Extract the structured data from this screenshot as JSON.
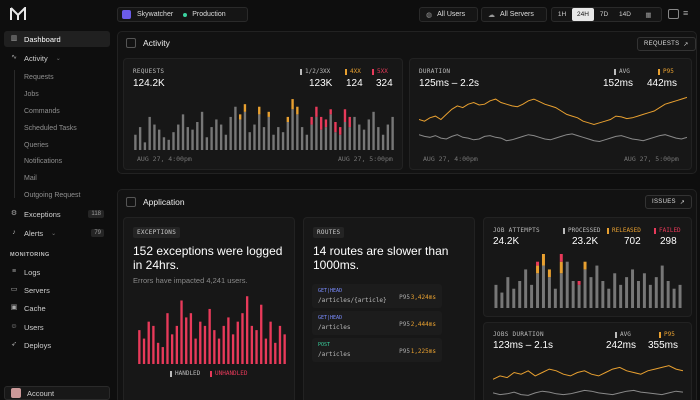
{
  "sidebar": {
    "items": [
      {
        "label": "Dashboard",
        "icon": "chart-bars-icon"
      },
      {
        "label": "Activity",
        "icon": "activity-icon"
      },
      {
        "label": "Exceptions",
        "icon": "bug-icon",
        "count": "118"
      },
      {
        "label": "Alerts",
        "icon": "bell-icon",
        "count": "79"
      }
    ],
    "activity_subitems": [
      "Requests",
      "Jobs",
      "Commands",
      "Scheduled Tasks",
      "Queries",
      "Notifications",
      "Mail",
      "Outgoing Request"
    ],
    "monitoring_label": "MONITORING",
    "monitoring_items": [
      "Logs",
      "Servers",
      "Cache",
      "Users",
      "Deploys"
    ],
    "account_label": "Account"
  },
  "topbar": {
    "app_name": "Skywatcher",
    "environment": "Production",
    "users_filter": "All Users",
    "servers_filter": "All Servers",
    "ranges": [
      "1H",
      "24H",
      "7D",
      "14D"
    ],
    "selected_range": "24H"
  },
  "activity": {
    "title": "Activity",
    "button": "REQUESTS",
    "requests": {
      "label": "REQUESTS",
      "total": "124.2K",
      "legend": [
        {
          "label": "1/2/3XX",
          "value": "123K",
          "color": "#8a8a8a"
        },
        {
          "label": "4XX",
          "value": "124",
          "color": "#e8a030"
        },
        {
          "label": "5XX",
          "value": "324",
          "color": "#e83a5a"
        }
      ],
      "x_start": "AUG 27, 4:00pm",
      "x_end": "AUG 27, 5:00pm"
    },
    "duration": {
      "label": "DURATION",
      "range": "125ms – 2.2s",
      "legend": [
        {
          "label": "AVG",
          "value": "152ms",
          "color": "#8a8a8a"
        },
        {
          "label": "P95",
          "value": "442ms",
          "color": "#e8a030"
        }
      ],
      "x_start": "AUG 27, 4:00pm",
      "x_end": "AUG 27, 5:00pm"
    }
  },
  "application": {
    "title": "Application",
    "button": "ISSUES",
    "exceptions": {
      "tag": "EXCEPTIONS",
      "headline": "152 exceptions were logged in 24hrs.",
      "sub": "Errors have impacted 4,241 users.",
      "legend_handled": "HANDLED",
      "legend_unhandled": "UNHANDLED"
    },
    "routes": {
      "tag": "ROUTES",
      "headline": "14 routes are slower than 1000ms.",
      "items": [
        {
          "method": "GET|HEAD",
          "path": "/articles/{article}",
          "p95_label": "P95",
          "p95": "3,424ms"
        },
        {
          "method": "GET|HEAD",
          "path": "/articles",
          "p95_label": "P95",
          "p95": "2,444ms"
        },
        {
          "method": "POST",
          "path": "/articles",
          "p95_label": "P95",
          "p95": "1,225ms"
        }
      ]
    },
    "jobs": {
      "label": "JOB ATTEMPTS",
      "total": "24.2K",
      "legend": [
        {
          "label": "PROCESSED",
          "value": "23.2K",
          "color": "#8a8a8a"
        },
        {
          "label": "RELEASED",
          "value": "702",
          "color": "#e8a030"
        },
        {
          "label": "FAILED",
          "value": "298",
          "color": "#e83a5a"
        }
      ]
    },
    "jobs_duration": {
      "label": "JOBS DURATION",
      "range": "123ms – 2.1s",
      "legend": [
        {
          "label": "AVG",
          "value": "242ms",
          "color": "#8a8a8a"
        },
        {
          "label": "P95",
          "value": "355ms",
          "color": "#e8a030"
        }
      ]
    }
  },
  "chart_data": [
    {
      "type": "bar",
      "title": "",
      "series": [
        {
          "name": "1/2/3XX",
          "values": [
            6,
            9,
            3,
            13,
            10,
            8,
            5,
            4,
            7,
            10,
            14,
            9,
            8,
            11,
            15,
            5,
            9,
            12,
            10,
            6,
            13,
            17,
            12,
            15,
            7,
            10,
            14,
            9,
            13,
            6,
            9,
            7,
            11,
            16,
            14,
            9,
            6,
            10,
            13,
            8,
            9,
            14,
            7,
            6,
            11,
            9,
            13,
            10,
            8,
            12,
            15,
            9,
            6,
            10,
            13
          ]
        },
        {
          "name": "4XX",
          "values": [
            0,
            0,
            0,
            0,
            0,
            0,
            0,
            0,
            0,
            0,
            0,
            0,
            0,
            0,
            0,
            0,
            0,
            0,
            0,
            0,
            0,
            0,
            2,
            3,
            0,
            0,
            3,
            0,
            2,
            0,
            0,
            0,
            2,
            4,
            3,
            0,
            0,
            0,
            0,
            0,
            0,
            0,
            0,
            0,
            0,
            0,
            0,
            0,
            0,
            0,
            0,
            0,
            0,
            0,
            0
          ]
        },
        {
          "name": "5XX",
          "values": [
            0,
            0,
            0,
            0,
            0,
            0,
            0,
            0,
            0,
            0,
            0,
            0,
            0,
            0,
            0,
            0,
            0,
            0,
            0,
            0,
            0,
            0,
            0,
            0,
            0,
            0,
            0,
            0,
            0,
            0,
            0,
            0,
            0,
            0,
            0,
            0,
            0,
            3,
            4,
            5,
            3,
            2,
            4,
            3,
            5,
            4,
            0,
            0,
            0,
            0,
            0,
            0,
            0,
            0,
            0
          ]
        }
      ]
    },
    {
      "type": "line",
      "title": "",
      "series": [
        {
          "name": "AVG",
          "values": [
            240,
            230,
            225,
            235,
            220,
            215,
            230,
            240,
            225,
            220,
            210,
            215,
            230,
            235,
            225,
            220,
            205,
            210,
            220,
            230,
            240,
            235,
            225,
            215,
            210,
            220,
            230,
            240,
            245,
            235,
            225,
            215,
            205,
            200,
            210,
            220,
            230,
            235,
            225,
            215,
            210,
            205,
            215,
            225,
            235,
            240,
            230,
            220,
            215,
            225
          ]
        },
        {
          "name": "P95",
          "values": [
            330,
            320,
            340,
            350,
            330,
            360,
            390,
            410,
            400,
            420,
            430,
            415,
            420,
            440,
            450,
            430,
            420,
            410,
            405,
            420,
            440,
            450,
            435,
            420,
            410,
            400,
            380,
            360,
            350,
            340,
            320,
            310,
            300,
            310,
            320,
            330,
            350,
            345,
            335,
            340,
            350,
            360,
            370,
            380,
            400,
            420,
            430,
            440,
            450,
            460
          ]
        }
      ]
    },
    {
      "type": "bar",
      "title": "",
      "series": [
        {
          "name": "UNHANDLED",
          "values": [
            8,
            6,
            10,
            9,
            5,
            4,
            12,
            7,
            9,
            15,
            11,
            12,
            6,
            10,
            9,
            13,
            8,
            6,
            9,
            11,
            7,
            10,
            12,
            16,
            9,
            8,
            14,
            6,
            10,
            5,
            9,
            7
          ]
        }
      ]
    },
    {
      "type": "bar",
      "title": "",
      "series": [
        {
          "name": "PROCESSED",
          "values": [
            6,
            4,
            8,
            5,
            7,
            10,
            6,
            9,
            11,
            8,
            5,
            9,
            12,
            7,
            6,
            10,
            8,
            11,
            7,
            5,
            9,
            6,
            8,
            10,
            7,
            9,
            6,
            8,
            11,
            7,
            5,
            6
          ]
        },
        {
          "name": "RELEASED",
          "values": [
            0,
            0,
            0,
            0,
            0,
            0,
            0,
            2,
            3,
            2,
            0,
            3,
            0,
            0,
            0,
            2,
            0,
            0,
            0,
            0,
            0,
            0,
            0,
            0,
            0,
            0,
            0,
            0,
            0,
            0,
            0,
            0
          ]
        },
        {
          "name": "FAILED",
          "values": [
            0,
            0,
            0,
            0,
            0,
            0,
            0,
            1,
            2,
            0,
            0,
            2,
            0,
            0,
            1,
            0,
            0,
            0,
            0,
            0,
            0,
            0,
            0,
            0,
            0,
            0,
            0,
            0,
            0,
            0,
            0,
            0
          ]
        }
      ]
    },
    {
      "type": "line",
      "title": "",
      "series": [
        {
          "name": "AVG",
          "values": [
            200,
            190,
            195,
            205,
            190,
            185,
            200,
            210,
            205,
            195,
            190,
            195,
            205,
            215,
            210,
            200,
            195,
            190,
            200,
            210,
            215,
            205,
            200,
            195,
            190,
            200,
            210,
            205
          ]
        },
        {
          "name": "P95",
          "values": [
            280,
            300,
            290,
            320,
            310,
            330,
            300,
            320,
            340,
            330,
            310,
            300,
            320,
            330,
            310,
            300,
            320,
            340,
            350,
            330,
            320,
            310,
            330,
            340,
            350,
            360,
            340,
            330
          ]
        }
      ]
    }
  ]
}
